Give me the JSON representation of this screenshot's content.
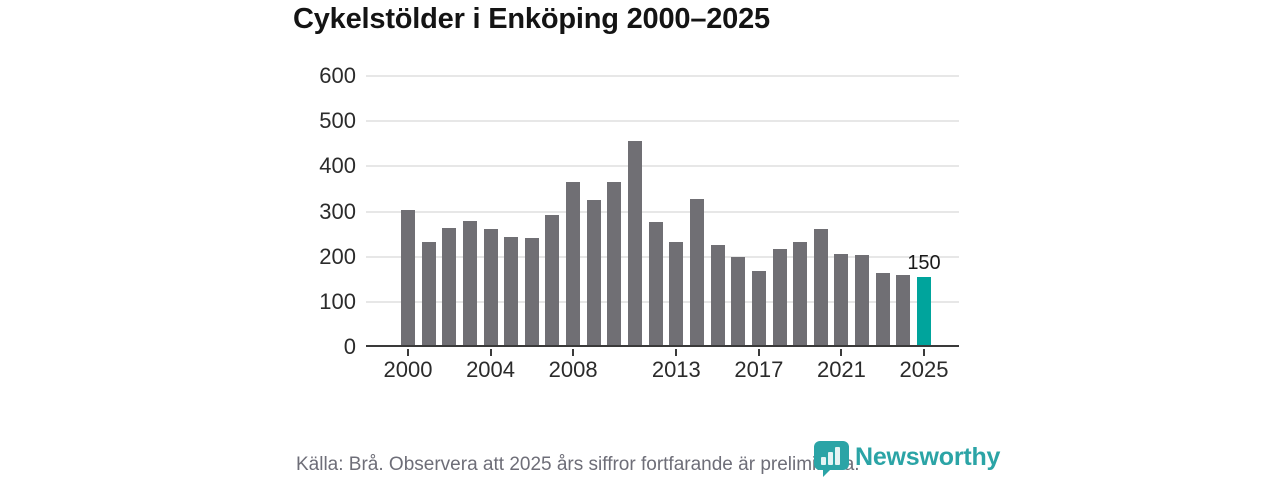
{
  "title": "Cykelstölder i Enköping 2000–2025",
  "footer": {
    "source_note": "Källa: Brå. Observera att 2025 års siffror fortfarande är preliminära."
  },
  "branding": {
    "logo_text": "Newsworthy",
    "logo_icon": "speech-bubble-bar-chart-icon"
  },
  "colors": {
    "bar": "#706f74",
    "highlight": "#00a49c",
    "brand": "#2ba4a6",
    "grid": "#e7e7e7",
    "axis": "#3a3a3a",
    "title": "#141414",
    "footer_text": "#6e6e78",
    "value_label": "#1a1a1a"
  },
  "chart_data": {
    "type": "bar",
    "title": "Cykelstölder i Enköping 2000–2025",
    "xlabel": "",
    "ylabel": "",
    "x": [
      2000,
      2001,
      2002,
      2003,
      2004,
      2005,
      2006,
      2007,
      2008,
      2009,
      2010,
      2011,
      2012,
      2013,
      2014,
      2015,
      2016,
      2017,
      2018,
      2019,
      2020,
      2021,
      2022,
      2023,
      2024,
      2025
    ],
    "values": [
      300,
      227,
      260,
      274,
      257,
      240,
      238,
      287,
      360,
      322,
      362,
      452,
      272,
      227,
      323,
      222,
      195,
      164,
      212,
      227,
      256,
      202,
      200,
      160,
      156,
      150
    ],
    "highlight_year": 2025,
    "highlight_value_label": "150",
    "ylim": [
      0,
      600
    ],
    "yticks": [
      0,
      100,
      200,
      300,
      400,
      500,
      600
    ],
    "xticks": [
      2000,
      2004,
      2008,
      2013,
      2017,
      2021,
      2025
    ],
    "grid": true,
    "legend": false
  }
}
